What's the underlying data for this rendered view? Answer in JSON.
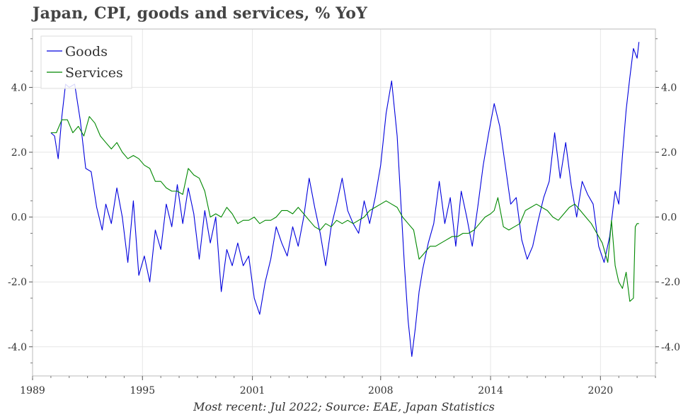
{
  "title": "Japan, CPI, goods and services, % YoY",
  "footer": "Most recent: Jul 2022; Source: EAE, Japan Statistics",
  "chart_data": {
    "type": "line",
    "xlim": [
      1989.0,
      2023.0
    ],
    "ylim": [
      -4.9,
      5.8
    ],
    "x_ticks": [
      1989,
      1995,
      2001,
      2008,
      2014,
      2020
    ],
    "x_tick_labels": [
      "1989",
      "1995",
      "2001",
      "2008",
      "2014",
      "2020"
    ],
    "y_ticks": [
      -4.0,
      -2.0,
      0.0,
      2.0,
      4.0
    ],
    "y_tick_labels": [
      "-4.0",
      "-2.0",
      "0.0",
      "2.0",
      "4.0"
    ],
    "grid": true,
    "legend_position": "top-left",
    "series": [
      {
        "name": "Goods",
        "color": "#0000dd",
        "points": [
          [
            1990.0,
            2.6
          ],
          [
            1990.2,
            2.5
          ],
          [
            1990.4,
            1.8
          ],
          [
            1990.6,
            3.1
          ],
          [
            1990.8,
            4.1
          ],
          [
            1991.0,
            4.0
          ],
          [
            1991.3,
            4.1
          ],
          [
            1991.6,
            3.0
          ],
          [
            1991.9,
            1.5
          ],
          [
            1992.2,
            1.4
          ],
          [
            1992.5,
            0.3
          ],
          [
            1992.8,
            -0.4
          ],
          [
            1993.0,
            0.4
          ],
          [
            1993.3,
            -0.2
          ],
          [
            1993.6,
            0.9
          ],
          [
            1993.9,
            0.0
          ],
          [
            1994.2,
            -1.4
          ],
          [
            1994.5,
            0.5
          ],
          [
            1994.8,
            -1.8
          ],
          [
            1995.1,
            -1.2
          ],
          [
            1995.4,
            -2.0
          ],
          [
            1995.7,
            -0.4
          ],
          [
            1996.0,
            -1.0
          ],
          [
            1996.3,
            0.4
          ],
          [
            1996.6,
            -0.3
          ],
          [
            1996.9,
            1.0
          ],
          [
            1997.2,
            -0.2
          ],
          [
            1997.5,
            0.9
          ],
          [
            1997.8,
            0.1
          ],
          [
            1998.1,
            -1.3
          ],
          [
            1998.4,
            0.2
          ],
          [
            1998.7,
            -0.8
          ],
          [
            1999.0,
            0.0
          ],
          [
            1999.3,
            -2.3
          ],
          [
            1999.6,
            -1.0
          ],
          [
            1999.9,
            -1.5
          ],
          [
            2000.2,
            -0.8
          ],
          [
            2000.5,
            -1.5
          ],
          [
            2000.8,
            -1.2
          ],
          [
            2001.1,
            -2.5
          ],
          [
            2001.4,
            -3.0
          ],
          [
            2001.7,
            -2.0
          ],
          [
            2002.0,
            -1.3
          ],
          [
            2002.3,
            -0.3
          ],
          [
            2002.6,
            -0.8
          ],
          [
            2002.9,
            -1.2
          ],
          [
            2003.2,
            -0.3
          ],
          [
            2003.5,
            -0.9
          ],
          [
            2003.8,
            0.0
          ],
          [
            2004.1,
            1.2
          ],
          [
            2004.4,
            0.3
          ],
          [
            2004.7,
            -0.5
          ],
          [
            2005.0,
            -1.5
          ],
          [
            2005.3,
            -0.3
          ],
          [
            2005.6,
            0.4
          ],
          [
            2005.9,
            1.2
          ],
          [
            2006.2,
            0.2
          ],
          [
            2006.5,
            -0.2
          ],
          [
            2006.8,
            -0.5
          ],
          [
            2007.1,
            0.5
          ],
          [
            2007.4,
            -0.2
          ],
          [
            2007.7,
            0.6
          ],
          [
            2008.0,
            1.6
          ],
          [
            2008.3,
            3.2
          ],
          [
            2008.6,
            4.2
          ],
          [
            2008.9,
            2.5
          ],
          [
            2009.1,
            0.5
          ],
          [
            2009.3,
            -1.5
          ],
          [
            2009.5,
            -3.2
          ],
          [
            2009.7,
            -4.3
          ],
          [
            2009.9,
            -3.4
          ],
          [
            2010.1,
            -2.3
          ],
          [
            2010.3,
            -1.6
          ],
          [
            2010.6,
            -0.8
          ],
          [
            2010.9,
            -0.2
          ],
          [
            2011.2,
            1.1
          ],
          [
            2011.5,
            -0.2
          ],
          [
            2011.8,
            0.6
          ],
          [
            2012.1,
            -0.9
          ],
          [
            2012.4,
            0.8
          ],
          [
            2012.7,
            0.0
          ],
          [
            2013.0,
            -0.9
          ],
          [
            2013.3,
            0.3
          ],
          [
            2013.6,
            1.6
          ],
          [
            2013.9,
            2.6
          ],
          [
            2014.2,
            3.5
          ],
          [
            2014.5,
            2.8
          ],
          [
            2014.8,
            1.6
          ],
          [
            2015.1,
            0.4
          ],
          [
            2015.4,
            0.6
          ],
          [
            2015.7,
            -0.7
          ],
          [
            2016.0,
            -1.3
          ],
          [
            2016.3,
            -0.9
          ],
          [
            2016.6,
            -0.1
          ],
          [
            2016.9,
            0.6
          ],
          [
            2017.2,
            1.1
          ],
          [
            2017.5,
            2.6
          ],
          [
            2017.8,
            1.2
          ],
          [
            2018.1,
            2.3
          ],
          [
            2018.4,
            1.0
          ],
          [
            2018.7,
            0.0
          ],
          [
            2019.0,
            1.1
          ],
          [
            2019.3,
            0.7
          ],
          [
            2019.6,
            0.4
          ],
          [
            2019.9,
            -0.9
          ],
          [
            2020.2,
            -1.4
          ],
          [
            2020.5,
            -0.6
          ],
          [
            2020.8,
            0.8
          ],
          [
            2021.0,
            0.4
          ],
          [
            2021.2,
            1.9
          ],
          [
            2021.4,
            3.3
          ],
          [
            2021.6,
            4.3
          ],
          [
            2021.8,
            5.2
          ],
          [
            2022.0,
            4.9
          ],
          [
            2022.1,
            5.4
          ]
        ]
      },
      {
        "name": "Services",
        "color": "#008800",
        "points": [
          [
            1990.0,
            2.6
          ],
          [
            1990.3,
            2.6
          ],
          [
            1990.6,
            3.0
          ],
          [
            1990.9,
            3.0
          ],
          [
            1991.2,
            2.6
          ],
          [
            1991.5,
            2.8
          ],
          [
            1991.8,
            2.5
          ],
          [
            1992.1,
            3.1
          ],
          [
            1992.4,
            2.9
          ],
          [
            1992.7,
            2.5
          ],
          [
            1993.0,
            2.3
          ],
          [
            1993.3,
            2.1
          ],
          [
            1993.6,
            2.3
          ],
          [
            1993.9,
            2.0
          ],
          [
            1994.2,
            1.8
          ],
          [
            1994.5,
            1.9
          ],
          [
            1994.8,
            1.8
          ],
          [
            1995.1,
            1.6
          ],
          [
            1995.4,
            1.5
          ],
          [
            1995.7,
            1.1
          ],
          [
            1996.0,
            1.1
          ],
          [
            1996.3,
            0.9
          ],
          [
            1996.6,
            0.8
          ],
          [
            1996.9,
            0.8
          ],
          [
            1997.2,
            0.7
          ],
          [
            1997.5,
            1.5
          ],
          [
            1997.8,
            1.3
          ],
          [
            1998.1,
            1.2
          ],
          [
            1998.4,
            0.8
          ],
          [
            1998.7,
            0.0
          ],
          [
            1999.0,
            0.1
          ],
          [
            1999.3,
            0.0
          ],
          [
            1999.6,
            0.3
          ],
          [
            1999.9,
            0.1
          ],
          [
            2000.2,
            -0.2
          ],
          [
            2000.5,
            -0.1
          ],
          [
            2000.8,
            -0.1
          ],
          [
            2001.1,
            0.0
          ],
          [
            2001.4,
            -0.2
          ],
          [
            2001.7,
            -0.1
          ],
          [
            2002.0,
            -0.1
          ],
          [
            2002.3,
            0.0
          ],
          [
            2002.6,
            0.2
          ],
          [
            2002.9,
            0.2
          ],
          [
            2003.2,
            0.1
          ],
          [
            2003.5,
            0.3
          ],
          [
            2003.8,
            0.1
          ],
          [
            2004.1,
            -0.1
          ],
          [
            2004.4,
            -0.3
          ],
          [
            2004.7,
            -0.4
          ],
          [
            2005.0,
            -0.2
          ],
          [
            2005.3,
            -0.3
          ],
          [
            2005.6,
            -0.1
          ],
          [
            2005.9,
            -0.2
          ],
          [
            2006.2,
            -0.1
          ],
          [
            2006.5,
            -0.2
          ],
          [
            2006.8,
            -0.1
          ],
          [
            2007.1,
            0.0
          ],
          [
            2007.4,
            0.2
          ],
          [
            2007.7,
            0.3
          ],
          [
            2008.0,
            0.4
          ],
          [
            2008.3,
            0.5
          ],
          [
            2008.6,
            0.4
          ],
          [
            2008.9,
            0.3
          ],
          [
            2009.2,
            0.0
          ],
          [
            2009.5,
            -0.2
          ],
          [
            2009.8,
            -0.4
          ],
          [
            2010.1,
            -1.3
          ],
          [
            2010.4,
            -1.1
          ],
          [
            2010.7,
            -0.9
          ],
          [
            2011.0,
            -0.9
          ],
          [
            2011.3,
            -0.8
          ],
          [
            2011.6,
            -0.7
          ],
          [
            2011.9,
            -0.6
          ],
          [
            2012.2,
            -0.6
          ],
          [
            2012.5,
            -0.5
          ],
          [
            2012.8,
            -0.5
          ],
          [
            2013.1,
            -0.4
          ],
          [
            2013.4,
            -0.2
          ],
          [
            2013.7,
            0.0
          ],
          [
            2014.0,
            0.1
          ],
          [
            2014.2,
            0.2
          ],
          [
            2014.4,
            0.6
          ],
          [
            2014.7,
            -0.3
          ],
          [
            2015.0,
            -0.4
          ],
          [
            2015.3,
            -0.3
          ],
          [
            2015.6,
            -0.2
          ],
          [
            2015.9,
            0.2
          ],
          [
            2016.2,
            0.3
          ],
          [
            2016.5,
            0.4
          ],
          [
            2016.8,
            0.3
          ],
          [
            2017.1,
            0.2
          ],
          [
            2017.4,
            0.0
          ],
          [
            2017.7,
            -0.1
          ],
          [
            2018.0,
            0.1
          ],
          [
            2018.3,
            0.3
          ],
          [
            2018.6,
            0.4
          ],
          [
            2018.9,
            0.2
          ],
          [
            2019.2,
            0.0
          ],
          [
            2019.5,
            -0.2
          ],
          [
            2019.8,
            -0.5
          ],
          [
            2020.1,
            -0.8
          ],
          [
            2020.4,
            -1.4
          ],
          [
            2020.6,
            -0.1
          ],
          [
            2020.8,
            -1.5
          ],
          [
            2021.0,
            -2.0
          ],
          [
            2021.2,
            -2.2
          ],
          [
            2021.4,
            -1.7
          ],
          [
            2021.6,
            -2.6
          ],
          [
            2021.8,
            -2.5
          ],
          [
            2021.9,
            -0.3
          ],
          [
            2022.0,
            -0.2
          ],
          [
            2022.1,
            -0.2
          ]
        ]
      }
    ]
  }
}
